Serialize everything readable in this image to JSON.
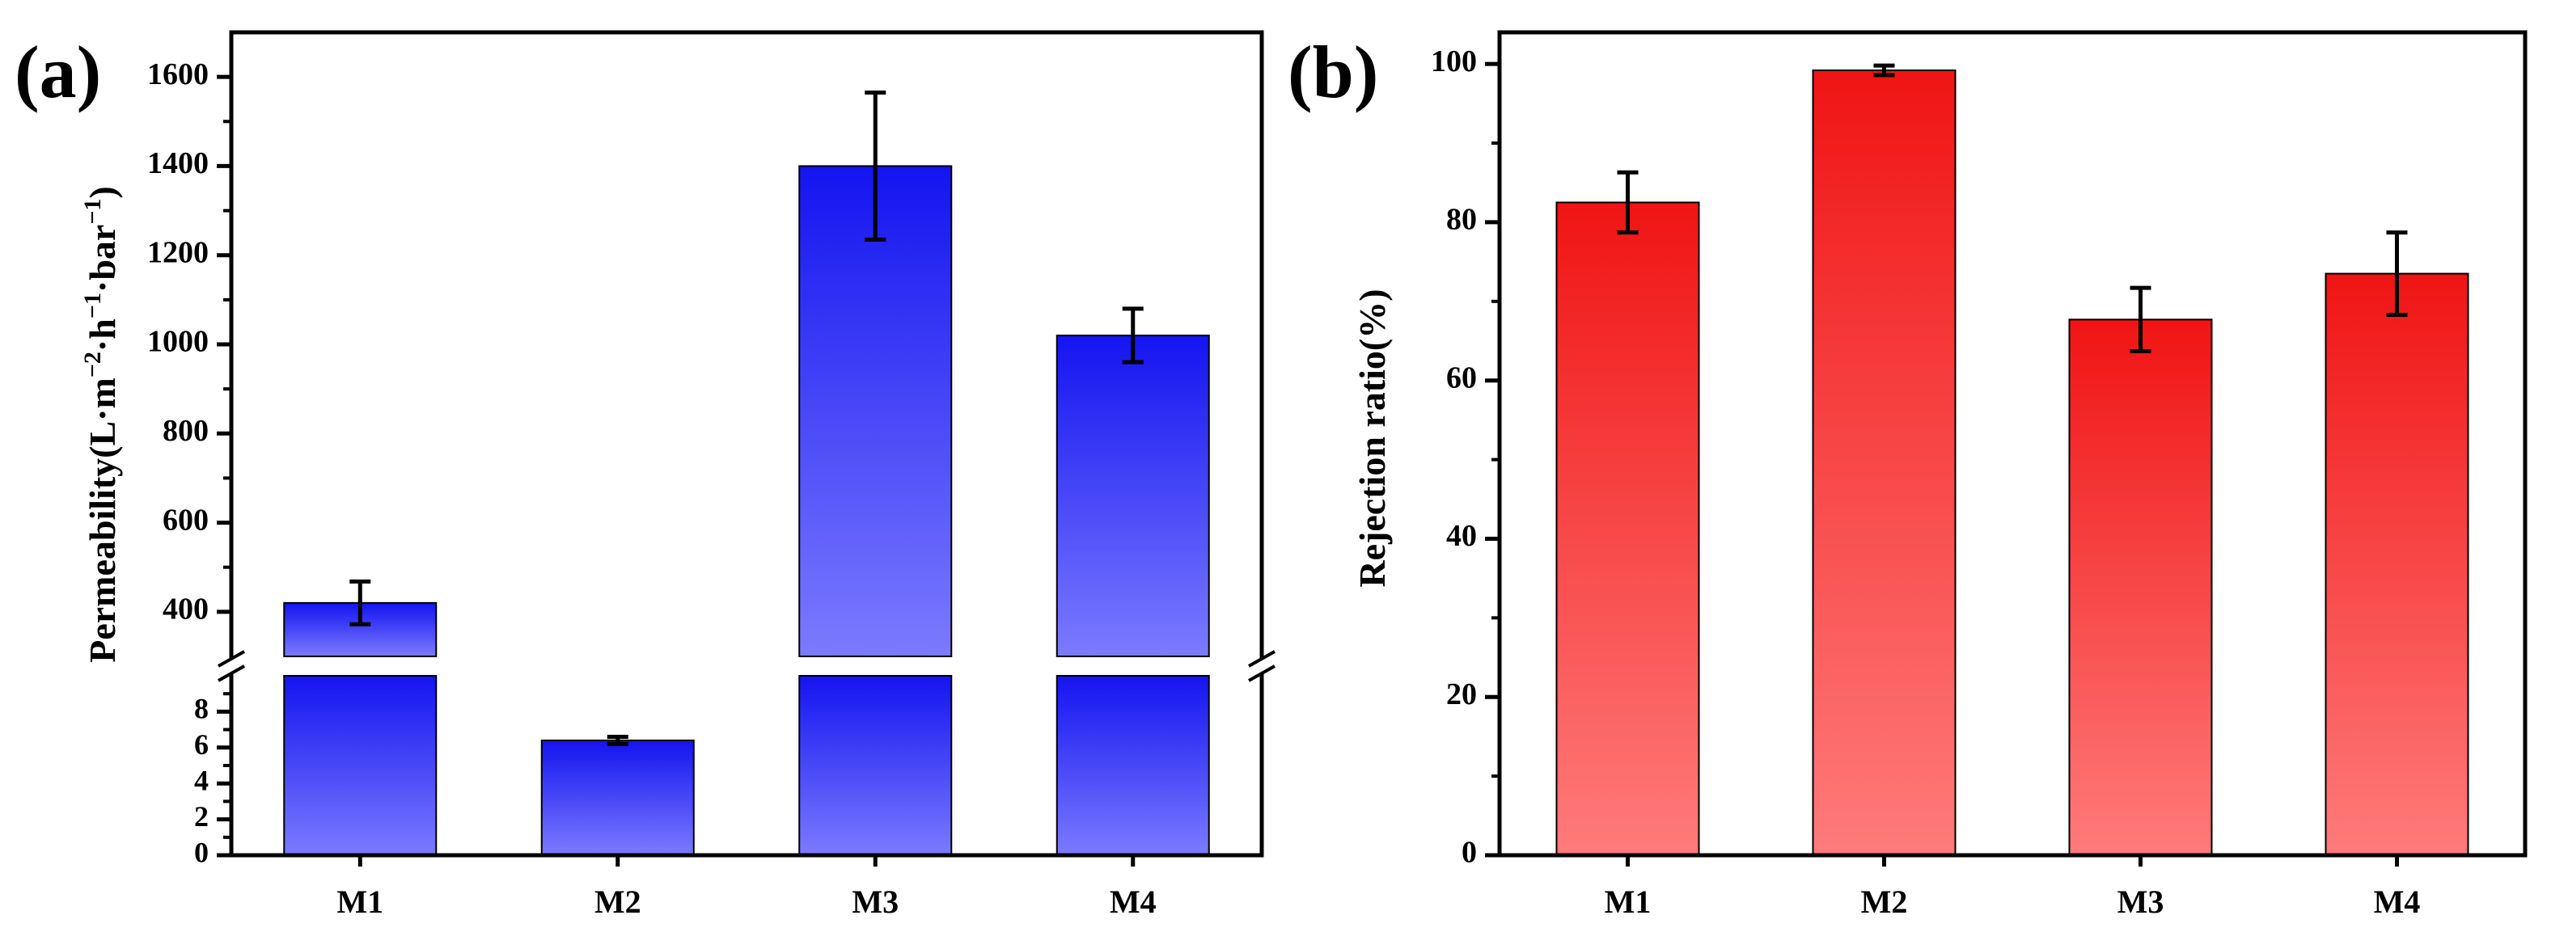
{
  "chart_data": [
    {
      "type": "bar",
      "panel_label": "(a)",
      "title": "",
      "xlabel": "",
      "ylabel": "Permeability",
      "ylabel_unit": {
        "open": "(",
        "parts": [
          {
            "text": "L·m",
            "sup": "−2"
          },
          {
            "text": "·h",
            "sup": "−1"
          },
          {
            "text": "·bar",
            "sup": "−1"
          }
        ],
        "close": ")"
      },
      "categories": [
        "M1",
        "M2",
        "M3",
        "M4"
      ],
      "values": [
        420,
        6.4,
        1400,
        1020
      ],
      "errors": [
        48,
        0.2,
        165,
        60
      ],
      "broken_axis": true,
      "lower_segment": {
        "ylim": [
          0,
          10
        ],
        "ticks": [
          0,
          2,
          4,
          6,
          8
        ]
      },
      "upper_segment": {
        "ylim": [
          300,
          1700
        ],
        "ticks": [
          400,
          600,
          800,
          1000,
          1200,
          1400,
          1600
        ]
      },
      "color_top": "#1414F0",
      "color_bottom": "#7B7BFF",
      "grid": false
    },
    {
      "type": "bar",
      "panel_label": "(b)",
      "title": "",
      "xlabel": "",
      "ylabel": "Rejection ratio(%)",
      "categories": [
        "M1",
        "M2",
        "M3",
        "M4"
      ],
      "values": [
        82.5,
        99.2,
        67.7,
        73.5
      ],
      "errors": [
        3.8,
        0.6,
        4.0,
        5.2
      ],
      "ylim": [
        0,
        104
      ],
      "ticks": [
        0,
        20,
        40,
        60,
        80,
        100
      ],
      "color_top": "#F01414",
      "color_bottom": "#FF7B7B",
      "grid": false
    }
  ]
}
